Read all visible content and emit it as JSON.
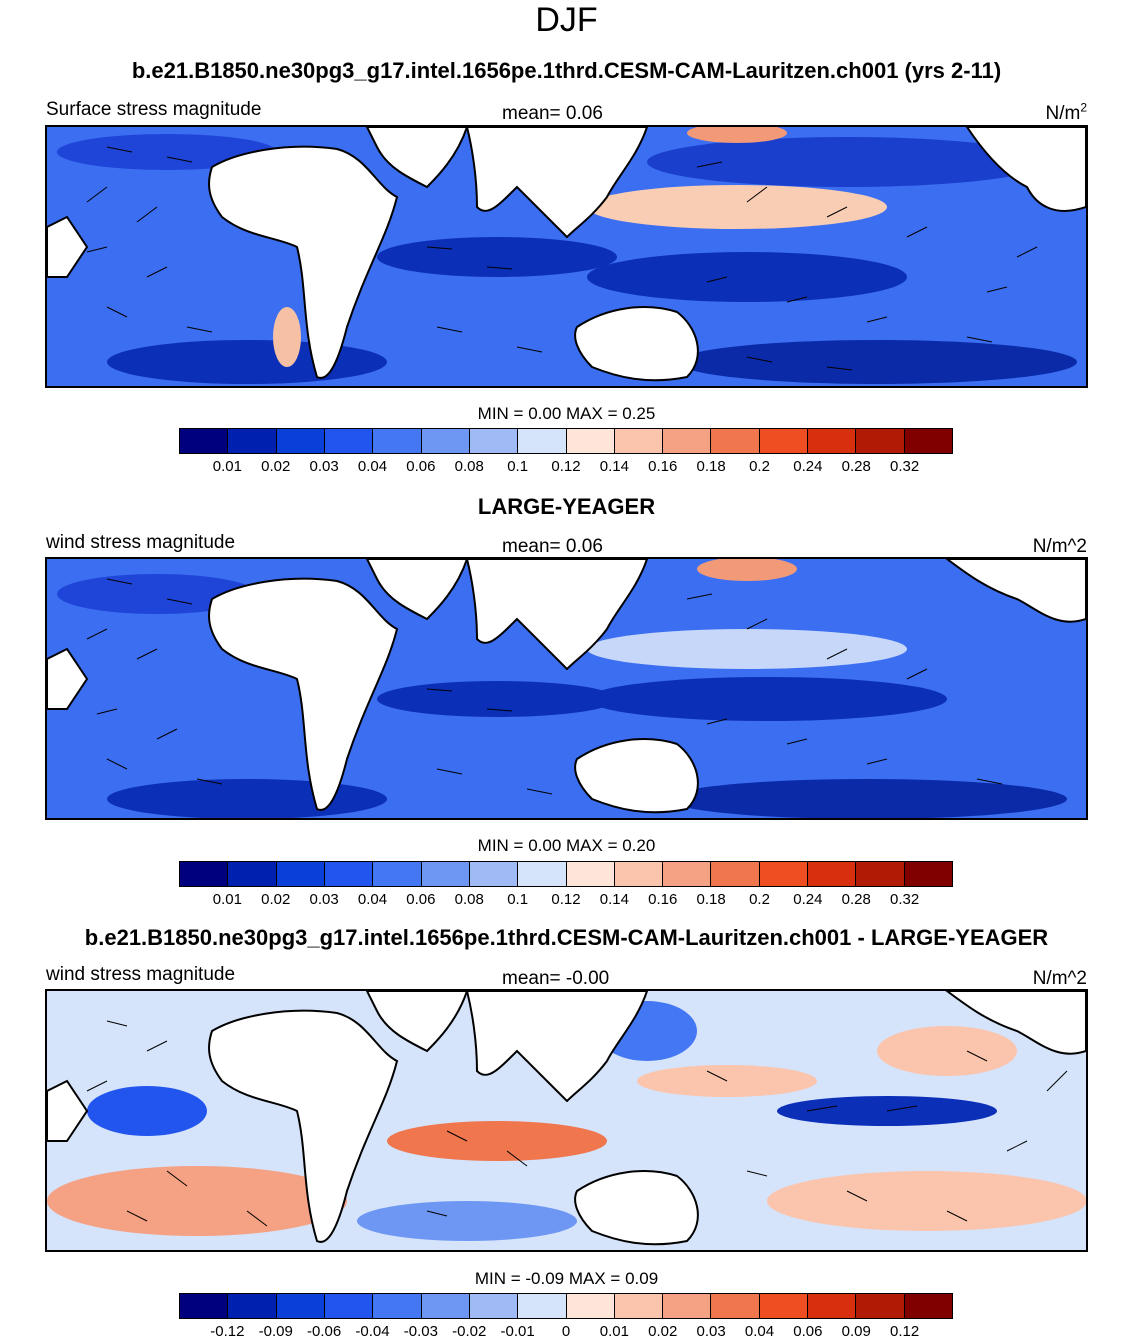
{
  "page_title": "DJF",
  "panels": [
    {
      "title": "b.e21.B1850.ne30pg3_g17.intel.1656pe.1thrd.CESM-CAM-Lauritzen.ch001 (yrs 2-11)",
      "left_label": "Surface stress magnitude",
      "mean_label": "mean=   0.06",
      "units_base": "N/m",
      "units_sup": "2",
      "minmax": "MIN =   0.00 MAX =   0.25",
      "colorbar_ticks": [
        "0.01",
        "0.02",
        "0.03",
        "0.04",
        "0.06",
        "0.08",
        "0.1",
        "0.12",
        "0.14",
        "0.16",
        "0.18",
        "0.2",
        "0.24",
        "0.28",
        "0.32"
      ]
    },
    {
      "title": "LARGE-YEAGER",
      "left_label": "wind stress magnitude",
      "mean_label": "mean=   0.06",
      "units_base": "N/m^2",
      "units_sup": "",
      "minmax": "MIN =   0.00 MAX =   0.20",
      "colorbar_ticks": [
        "0.01",
        "0.02",
        "0.03",
        "0.04",
        "0.06",
        "0.08",
        "0.1",
        "0.12",
        "0.14",
        "0.16",
        "0.18",
        "0.2",
        "0.24",
        "0.28",
        "0.32"
      ]
    },
    {
      "title": "b.e21.B1850.ne30pg3_g17.intel.1656pe.1thrd.CESM-CAM-Lauritzen.ch001 - LARGE-YEAGER",
      "left_label": "wind stress magnitude",
      "mean_label": "mean=  -0.00",
      "units_base": "N/m^2",
      "units_sup": "",
      "minmax": "MIN =  -0.09 MAX =   0.09",
      "colorbar_ticks": [
        "-0.12",
        "-0.09",
        "-0.06",
        "-0.04",
        "-0.03",
        "-0.02",
        "-0.01",
        "0",
        "0.01",
        "0.02",
        "0.03",
        "0.04",
        "0.06",
        "0.09",
        "0.12"
      ]
    }
  ],
  "colorbar_colors": [
    "#00007f",
    "#0020b0",
    "#0a3fd8",
    "#2155ee",
    "#4377f3",
    "#6e97f4",
    "#a0baf6",
    "#d5e3fb",
    "#fde6d9",
    "#fbc5ad",
    "#f5a183",
    "#f0764e",
    "#ee4e22",
    "#d8300f",
    "#b11a05",
    "#800000"
  ]
}
